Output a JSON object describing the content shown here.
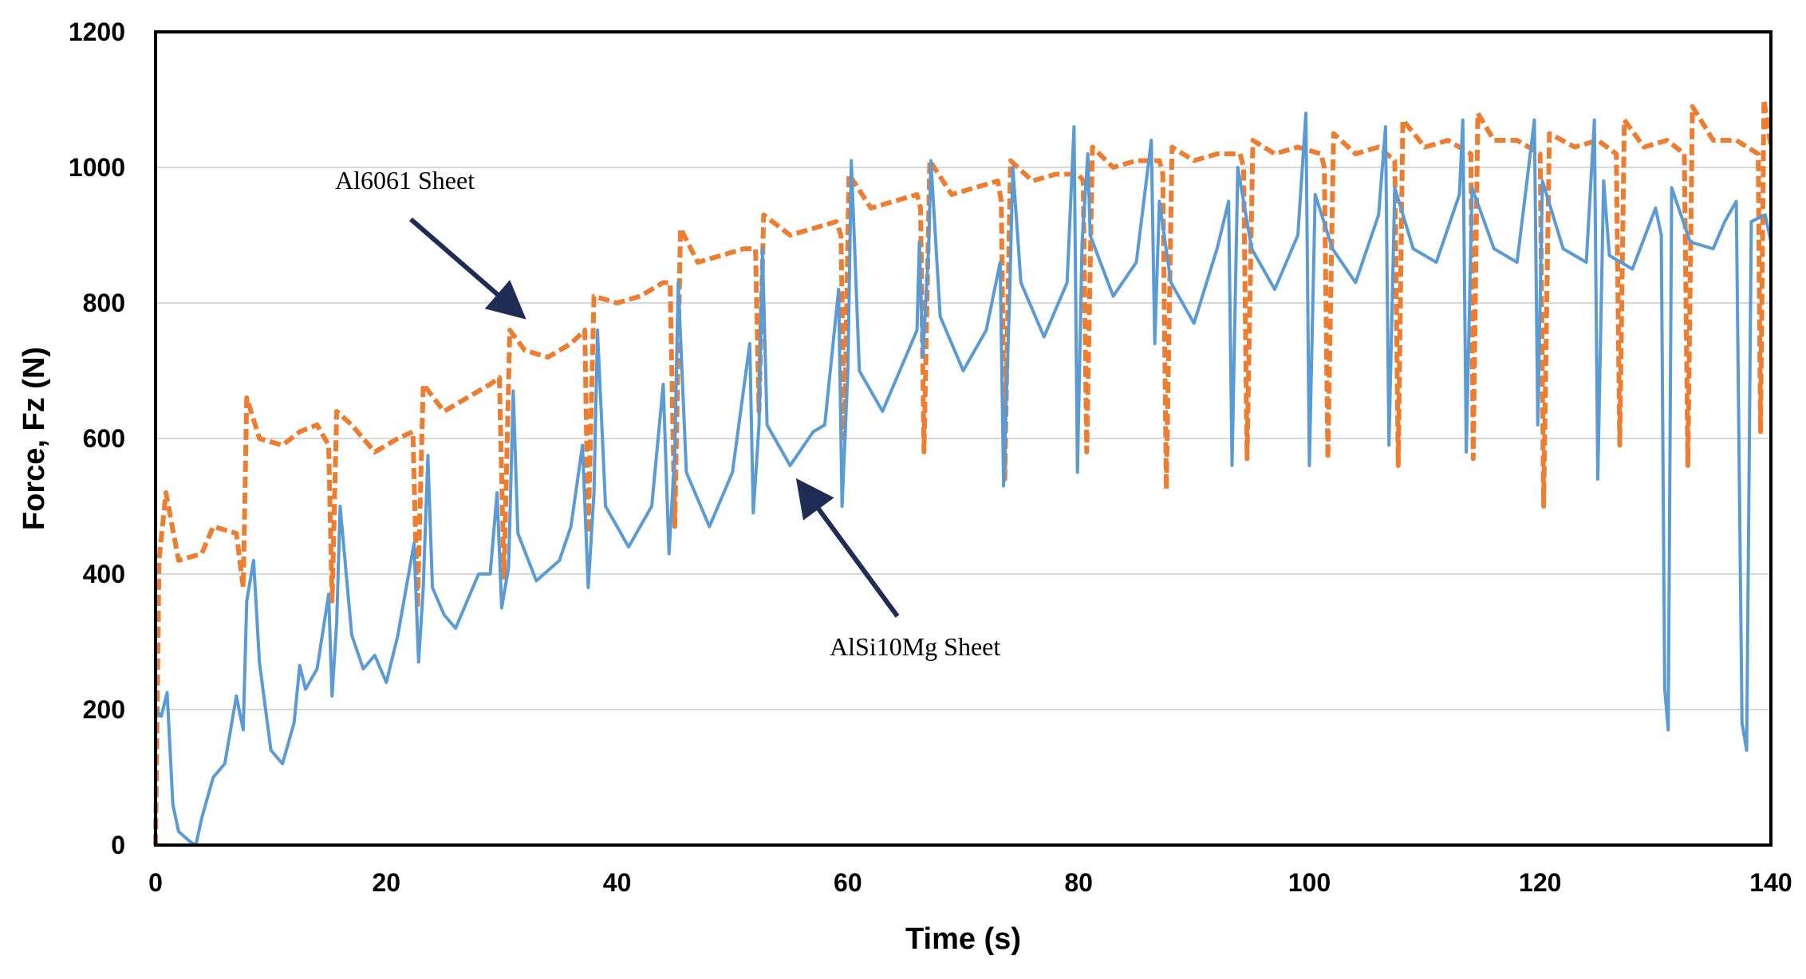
{
  "chart_data": {
    "type": "line",
    "title": "",
    "xlabel": "Time (s)",
    "ylabel": "Force, Fz (N)",
    "xlim": [
      0,
      140
    ],
    "ylim": [
      0,
      1200
    ],
    "x_ticks": [
      0,
      20,
      40,
      60,
      80,
      100,
      120,
      140
    ],
    "y_ticks": [
      0,
      200,
      400,
      600,
      800,
      1000,
      1200
    ],
    "grid": "horizontal",
    "legend": "none",
    "colors": {
      "al6061": "#ED7D31",
      "alsi10mg": "#5B9BD5",
      "arrow": "#1F2D55"
    },
    "annotations": [
      {
        "text": "Al6061  Sheet",
        "points_to": [
          31.5,
          785
        ],
        "series": "Al6061 Sheet"
      },
      {
        "text": "AlSi10Mg  Sheet",
        "points_to": [
          56,
          530
        ],
        "series": "AlSi10Mg Sheet"
      }
    ],
    "series": [
      {
        "name": "Al6061 Sheet",
        "style": "dashed",
        "color": "#ED7D31",
        "points": [
          [
            0,
            0
          ],
          [
            0.3,
            420
          ],
          [
            0.9,
            520
          ],
          [
            2,
            420
          ],
          [
            4,
            430
          ],
          [
            5,
            470
          ],
          [
            7,
            460
          ],
          [
            7.6,
            380
          ],
          [
            7.9,
            660
          ],
          [
            9,
            600
          ],
          [
            11,
            590
          ],
          [
            12.5,
            610
          ],
          [
            14,
            620
          ],
          [
            15,
            590
          ],
          [
            15.3,
            360
          ],
          [
            15.7,
            640
          ],
          [
            17,
            620
          ],
          [
            19,
            580
          ],
          [
            21,
            600
          ],
          [
            22.3,
            610
          ],
          [
            22.7,
            350
          ],
          [
            23.2,
            680
          ],
          [
            25,
            640
          ],
          [
            27,
            660
          ],
          [
            29,
            680
          ],
          [
            29.8,
            690
          ],
          [
            30.2,
            395
          ],
          [
            30.7,
            760
          ],
          [
            32,
            730
          ],
          [
            34,
            720
          ],
          [
            36,
            740
          ],
          [
            37.2,
            760
          ],
          [
            37.5,
            460
          ],
          [
            38,
            810
          ],
          [
            40,
            800
          ],
          [
            42,
            810
          ],
          [
            44,
            830
          ],
          [
            44.6,
            830
          ],
          [
            45,
            470
          ],
          [
            45.5,
            910
          ],
          [
            47,
            860
          ],
          [
            49,
            870
          ],
          [
            51,
            880
          ],
          [
            52,
            880
          ],
          [
            52.3,
            640
          ],
          [
            52.7,
            930
          ],
          [
            55,
            900
          ],
          [
            57,
            910
          ],
          [
            59,
            920
          ],
          [
            59.4,
            900
          ],
          [
            59.7,
            600
          ],
          [
            60.1,
            990
          ],
          [
            62,
            940
          ],
          [
            64,
            950
          ],
          [
            66,
            960
          ],
          [
            66.3,
            940
          ],
          [
            66.6,
            580
          ],
          [
            67.1,
            1010
          ],
          [
            69,
            960
          ],
          [
            71,
            970
          ],
          [
            73,
            980
          ],
          [
            73.3,
            950
          ],
          [
            73.6,
            540
          ],
          [
            74.1,
            1010
          ],
          [
            76,
            980
          ],
          [
            78,
            990
          ],
          [
            80,
            990
          ],
          [
            80.4,
            980
          ],
          [
            80.7,
            580
          ],
          [
            81.2,
            1030
          ],
          [
            83,
            1000
          ],
          [
            85,
            1010
          ],
          [
            87,
            1010
          ],
          [
            87.3,
            990
          ],
          [
            87.6,
            525
          ],
          [
            88.1,
            1030
          ],
          [
            90,
            1010
          ],
          [
            92,
            1020
          ],
          [
            94,
            1020
          ],
          [
            94.3,
            1000
          ],
          [
            94.6,
            570
          ],
          [
            95.1,
            1040
          ],
          [
            97,
            1020
          ],
          [
            99,
            1030
          ],
          [
            101,
            1020
          ],
          [
            101.3,
            1000
          ],
          [
            101.6,
            570
          ],
          [
            102.1,
            1050
          ],
          [
            104,
            1020
          ],
          [
            106,
            1030
          ],
          [
            107.4,
            1010
          ],
          [
            107.7,
            560
          ],
          [
            108.1,
            1070
          ],
          [
            110,
            1030
          ],
          [
            112,
            1040
          ],
          [
            114,
            1020
          ],
          [
            114.2,
            570
          ],
          [
            114.6,
            1080
          ],
          [
            116,
            1040
          ],
          [
            118,
            1040
          ],
          [
            120,
            1020
          ],
          [
            120.3,
            500
          ],
          [
            120.8,
            1050
          ],
          [
            123,
            1030
          ],
          [
            125,
            1040
          ],
          [
            126.6,
            1020
          ],
          [
            126.9,
            590
          ],
          [
            127.3,
            1070
          ],
          [
            129,
            1030
          ],
          [
            131,
            1040
          ],
          [
            132.5,
            1020
          ],
          [
            132.8,
            560
          ],
          [
            133.2,
            1090
          ],
          [
            135,
            1040
          ],
          [
            137,
            1040
          ],
          [
            138.9,
            1020
          ],
          [
            139.1,
            610
          ],
          [
            139.4,
            1100
          ],
          [
            140,
            1030
          ]
        ]
      },
      {
        "name": "AlSi10Mg Sheet",
        "style": "solid",
        "color": "#5B9BD5",
        "points": [
          [
            0,
            200
          ],
          [
            0.5,
            190
          ],
          [
            1,
            225
          ],
          [
            1.5,
            60
          ],
          [
            2,
            20
          ],
          [
            3,
            5
          ],
          [
            3.5,
            0
          ],
          [
            4,
            40
          ],
          [
            5,
            100
          ],
          [
            6,
            120
          ],
          [
            7,
            220
          ],
          [
            7.6,
            170
          ],
          [
            7.9,
            360
          ],
          [
            8.5,
            420
          ],
          [
            9,
            270
          ],
          [
            10,
            140
          ],
          [
            11,
            120
          ],
          [
            12,
            180
          ],
          [
            12.5,
            265
          ],
          [
            13,
            230
          ],
          [
            14,
            260
          ],
          [
            15,
            370
          ],
          [
            15.3,
            220
          ],
          [
            15.7,
            330
          ],
          [
            16,
            500
          ],
          [
            17,
            310
          ],
          [
            18,
            260
          ],
          [
            19,
            280
          ],
          [
            20,
            240
          ],
          [
            21,
            310
          ],
          [
            22.4,
            445
          ],
          [
            22.8,
            270
          ],
          [
            23.2,
            380
          ],
          [
            23.6,
            575
          ],
          [
            24,
            380
          ],
          [
            25,
            340
          ],
          [
            26,
            320
          ],
          [
            28,
            400
          ],
          [
            29,
            400
          ],
          [
            29.6,
            520
          ],
          [
            30,
            350
          ],
          [
            30.6,
            410
          ],
          [
            31,
            670
          ],
          [
            31.4,
            460
          ],
          [
            33,
            390
          ],
          [
            35,
            420
          ],
          [
            36,
            470
          ],
          [
            37,
            590
          ],
          [
            37.5,
            380
          ],
          [
            38,
            520
          ],
          [
            38.3,
            760
          ],
          [
            39,
            500
          ],
          [
            41,
            440
          ],
          [
            43,
            500
          ],
          [
            44,
            680
          ],
          [
            44.5,
            430
          ],
          [
            45,
            580
          ],
          [
            45.3,
            830
          ],
          [
            46,
            550
          ],
          [
            48,
            470
          ],
          [
            50,
            550
          ],
          [
            51.5,
            740
          ],
          [
            51.8,
            490
          ],
          [
            52.3,
            620
          ],
          [
            52.6,
            880
          ],
          [
            53,
            620
          ],
          [
            55,
            560
          ],
          [
            57,
            610
          ],
          [
            58,
            620
          ],
          [
            59.2,
            820
          ],
          [
            59.5,
            500
          ],
          [
            60,
            700
          ],
          [
            60.3,
            1010
          ],
          [
            61,
            700
          ],
          [
            63,
            640
          ],
          [
            65,
            720
          ],
          [
            66,
            760
          ],
          [
            66.2,
            890
          ],
          [
            66.5,
            720
          ],
          [
            67,
            880
          ],
          [
            67.2,
            1010
          ],
          [
            68,
            780
          ],
          [
            70,
            700
          ],
          [
            72,
            760
          ],
          [
            73.2,
            860
          ],
          [
            73.5,
            530
          ],
          [
            74,
            800
          ],
          [
            74.3,
            1000
          ],
          [
            75,
            830
          ],
          [
            77,
            750
          ],
          [
            79,
            830
          ],
          [
            79.6,
            1060
          ],
          [
            79.9,
            550
          ],
          [
            80.3,
            890
          ],
          [
            80.8,
            1020
          ],
          [
            81,
            900
          ],
          [
            83,
            810
          ],
          [
            85,
            860
          ],
          [
            86.3,
            1040
          ],
          [
            86.6,
            740
          ],
          [
            87,
            950
          ],
          [
            88,
            830
          ],
          [
            90,
            770
          ],
          [
            92,
            880
          ],
          [
            93,
            950
          ],
          [
            93.3,
            560
          ],
          [
            93.8,
            1000
          ],
          [
            95,
            880
          ],
          [
            97,
            820
          ],
          [
            99,
            900
          ],
          [
            99.7,
            1080
          ],
          [
            100,
            560
          ],
          [
            100.5,
            960
          ],
          [
            102,
            880
          ],
          [
            104,
            830
          ],
          [
            106,
            930
          ],
          [
            106.6,
            1060
          ],
          [
            106.9,
            590
          ],
          [
            107.4,
            970
          ],
          [
            109,
            880
          ],
          [
            111,
            860
          ],
          [
            113,
            960
          ],
          [
            113.3,
            1070
          ],
          [
            113.6,
            580
          ],
          [
            114.1,
            970
          ],
          [
            116,
            880
          ],
          [
            118,
            860
          ],
          [
            119.5,
            1070
          ],
          [
            119.8,
            620
          ],
          [
            120.2,
            980
          ],
          [
            122,
            880
          ],
          [
            124,
            860
          ],
          [
            124.7,
            1070
          ],
          [
            125,
            540
          ],
          [
            125.5,
            980
          ],
          [
            126,
            870
          ],
          [
            128,
            850
          ],
          [
            130,
            940
          ],
          [
            130.5,
            900
          ],
          [
            130.8,
            230
          ],
          [
            131.1,
            170
          ],
          [
            131.4,
            970
          ],
          [
            133,
            890
          ],
          [
            135,
            880
          ],
          [
            136,
            920
          ],
          [
            137,
            950
          ],
          [
            137.5,
            180
          ],
          [
            137.9,
            140
          ],
          [
            138.3,
            920
          ],
          [
            139.5,
            930
          ],
          [
            140,
            890
          ]
        ]
      }
    ]
  }
}
